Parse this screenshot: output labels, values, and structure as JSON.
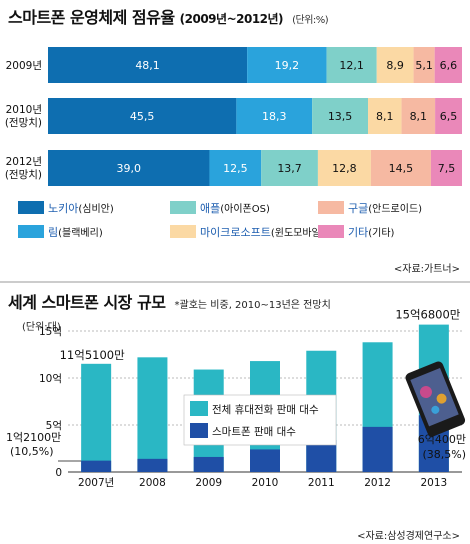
{
  "top": {
    "title": "스마트폰 운영체제 점유율",
    "title_years": "(2009년~2012년)",
    "unit": "(단위:%)",
    "source": "<자료:가트너>",
    "rows": [
      {
        "label": [
          "2009년"
        ],
        "values": [
          48.1,
          19.2,
          12.1,
          8.9,
          5.1,
          6.6
        ],
        "texts": [
          "48,1",
          "19,2",
          "12,1",
          "8,9",
          "5,1",
          "6,6"
        ]
      },
      {
        "label": [
          "2010년",
          "(전망치)"
        ],
        "values": [
          45.5,
          18.3,
          13.5,
          8.1,
          8.1,
          6.5
        ],
        "texts": [
          "45,5",
          "18,3",
          "13,5",
          "8,1",
          "8,1",
          "6,5"
        ]
      },
      {
        "label": [
          "2012년",
          "(전망치)"
        ],
        "values": [
          39.0,
          12.5,
          13.7,
          12.8,
          14.5,
          7.5
        ],
        "texts": [
          "39,0",
          "12,5",
          "13,7",
          "12,8",
          "14,5",
          "7,5"
        ]
      }
    ],
    "legend": [
      {
        "name": "노키아",
        "sub": "(심비안)",
        "color": "#0e6eb0"
      },
      {
        "name": "림",
        "sub": "(블랙베리)",
        "color": "#2aa3dc"
      },
      {
        "name": "애플",
        "sub": "(아이폰OS)",
        "color": "#7fd0c9"
      },
      {
        "name": "마이크로소프트",
        "sub": "(윈도모바일)",
        "color": "#fbd9a4"
      },
      {
        "name": "구글",
        "sub": "(안드로이드)",
        "color": "#f6b9a2"
      },
      {
        "name": "기타",
        "sub": "(기타)",
        "color": "#ea88b9"
      }
    ]
  },
  "bottom": {
    "title": "세계 스마트폰 시장 규모",
    "note": "*괄호는 비중, 2010~13년은 전망치",
    "unit": "(단위:대)",
    "source": "<자료:삼성경제연구소>",
    "legend_total": "전체 휴대전화 판매 대수",
    "legend_smart": "스마트폰 판매 대수",
    "ann_2007_top": "11억5100만",
    "ann_2007_a": "1억2100만",
    "ann_2007_b": "(10,5%)",
    "ann_2013_top": "15억6800만",
    "ann_2013_a": "6억400만",
    "ann_2013_b": "(38,5%)"
  },
  "chart_data": [
    {
      "type": "bar",
      "title": "스마트폰 운영체제 점유율 (2009년~2012년)",
      "stacked": true,
      "orientation": "horizontal",
      "unit": "%",
      "categories": [
        "2009년",
        "2010년 (전망치)",
        "2012년 (전망치)"
      ],
      "series": [
        {
          "name": "노키아(심비안)",
          "values": [
            48.1,
            45.5,
            39.0
          ]
        },
        {
          "name": "림(블랙베리)",
          "values": [
            19.2,
            18.3,
            12.5
          ]
        },
        {
          "name": "애플(아이폰OS)",
          "values": [
            12.1,
            13.5,
            13.7
          ]
        },
        {
          "name": "마이크로소프트(윈도모바일)",
          "values": [
            8.9,
            8.1,
            12.8
          ]
        },
        {
          "name": "구글(안드로이드)",
          "values": [
            5.1,
            8.1,
            14.5
          ]
        },
        {
          "name": "기타(기타)",
          "values": [
            6.6,
            6.5,
            7.5
          ]
        }
      ]
    },
    {
      "type": "bar",
      "title": "세계 스마트폰 시장 규모",
      "ylabel": "(단위:대)",
      "categories": [
        "2007년",
        "2008",
        "2009",
        "2010",
        "2011",
        "2012",
        "2013"
      ],
      "yticks": [
        0,
        5,
        10,
        15
      ],
      "ytick_labels": [
        "0",
        "5억",
        "10억",
        "15억"
      ],
      "ylim": [
        0,
        15.7
      ],
      "series": [
        {
          "name": "전체 휴대전화 판매 대수",
          "values": [
            11.51,
            12.2,
            10.9,
            11.8,
            12.9,
            13.8,
            15.68
          ]
        },
        {
          "name": "스마트폰 판매 대수",
          "values": [
            1.21,
            1.4,
            1.6,
            2.4,
            3.4,
            4.8,
            6.04
          ]
        }
      ]
    }
  ]
}
